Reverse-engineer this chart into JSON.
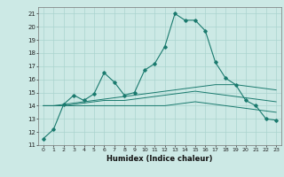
{
  "title": "",
  "xlabel": "Humidex (Indice chaleur)",
  "bg_color": "#cce9e5",
  "grid_color": "#aad4cf",
  "line_color": "#1a7a6e",
  "xlim": [
    -0.5,
    23.5
  ],
  "ylim": [
    11,
    21.5
  ],
  "yticks": [
    11,
    12,
    13,
    14,
    15,
    16,
    17,
    18,
    19,
    20,
    21
  ],
  "xticks": [
    0,
    1,
    2,
    3,
    4,
    5,
    6,
    7,
    8,
    9,
    10,
    11,
    12,
    13,
    14,
    15,
    16,
    17,
    18,
    19,
    20,
    21,
    22,
    23
  ],
  "series": [
    [
      11.5,
      12.2,
      14.1,
      14.8,
      14.4,
      14.9,
      16.5,
      15.8,
      14.8,
      15.0,
      16.7,
      17.2,
      18.5,
      21.0,
      20.5,
      20.5,
      19.7,
      17.3,
      16.1,
      15.6,
      14.4,
      14.0,
      13.0,
      12.9
    ],
    [
      14.0,
      14.0,
      14.1,
      14.2,
      14.3,
      14.4,
      14.5,
      14.6,
      14.7,
      14.8,
      14.9,
      15.0,
      15.1,
      15.2,
      15.3,
      15.4,
      15.5,
      15.6,
      15.6,
      15.6,
      15.5,
      15.4,
      15.3,
      15.2
    ],
    [
      14.0,
      14.0,
      14.0,
      14.0,
      14.0,
      14.0,
      14.0,
      14.0,
      14.0,
      14.0,
      14.0,
      14.0,
      14.0,
      14.1,
      14.2,
      14.3,
      14.2,
      14.1,
      14.0,
      13.9,
      13.8,
      13.7,
      13.6,
      13.5
    ],
    [
      14.0,
      14.0,
      14.0,
      14.1,
      14.2,
      14.3,
      14.4,
      14.4,
      14.4,
      14.5,
      14.6,
      14.7,
      14.8,
      14.9,
      15.0,
      15.1,
      15.0,
      14.9,
      14.8,
      14.7,
      14.6,
      14.5,
      14.4,
      14.3
    ]
  ]
}
